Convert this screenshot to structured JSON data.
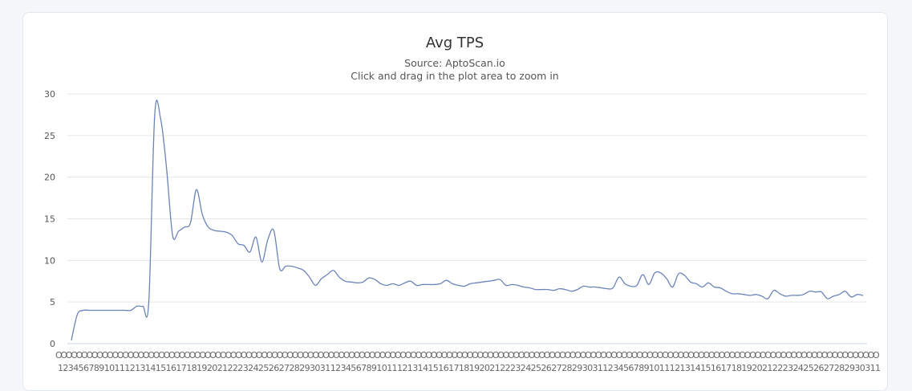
{
  "chart_data": {
    "type": "line",
    "title": "Avg TPS",
    "subtitle": "Source: AptoScan.io",
    "hint": "Click and drag in the plot area to zoom in",
    "ylim": [
      0,
      30
    ],
    "yticks": [
      0,
      5,
      10,
      15,
      20,
      25,
      30
    ],
    "grid": true,
    "line_color": "#6a84b8",
    "xtick_top": "O",
    "xtick_bottom_pattern": "12345678910111213141516171819202122232425262728293031",
    "series": [
      {
        "values": [
          0.4,
          3.5,
          4.0,
          4.0,
          4.0,
          4.0,
          4.0,
          4.0,
          4.0,
          4.0,
          4.0,
          4.5,
          4.5,
          5.0,
          27.5,
          27.0,
          21.0,
          13.0,
          13.5,
          14.0,
          14.5,
          18.5,
          15.5,
          14.0,
          13.6,
          13.5,
          13.4,
          13.0,
          12.0,
          11.8,
          11.0,
          12.8,
          9.8,
          12.5,
          13.6,
          9.0,
          9.3,
          9.3,
          9.1,
          8.8,
          8.0,
          7.0,
          7.8,
          8.3,
          8.8,
          8.0,
          7.5,
          7.4,
          7.3,
          7.4,
          7.9,
          7.7,
          7.2,
          7.0,
          7.2,
          7.0,
          7.3,
          7.5,
          7.0,
          7.1,
          7.1,
          7.1,
          7.2,
          7.6,
          7.2,
          7.0,
          6.9,
          7.2,
          7.3,
          7.4,
          7.5,
          7.6,
          7.7,
          7.0,
          7.1,
          7.0,
          6.8,
          6.7,
          6.5,
          6.5,
          6.5,
          6.4,
          6.6,
          6.5,
          6.3,
          6.5,
          6.9,
          6.8,
          6.8,
          6.7,
          6.6,
          6.7,
          8.0,
          7.2,
          6.9,
          7.0,
          8.3,
          7.1,
          8.5,
          8.5,
          7.8,
          6.8,
          8.4,
          8.2,
          7.4,
          7.2,
          6.8,
          7.3,
          6.8,
          6.7,
          6.3,
          6.0,
          6.0,
          5.9,
          5.8,
          5.9,
          5.7,
          5.4,
          6.4,
          6.0,
          5.7,
          5.8,
          5.8,
          5.9,
          6.3,
          6.2,
          6.2,
          5.4,
          5.7,
          5.9,
          6.3,
          5.6,
          5.9,
          5.8
        ]
      }
    ]
  }
}
